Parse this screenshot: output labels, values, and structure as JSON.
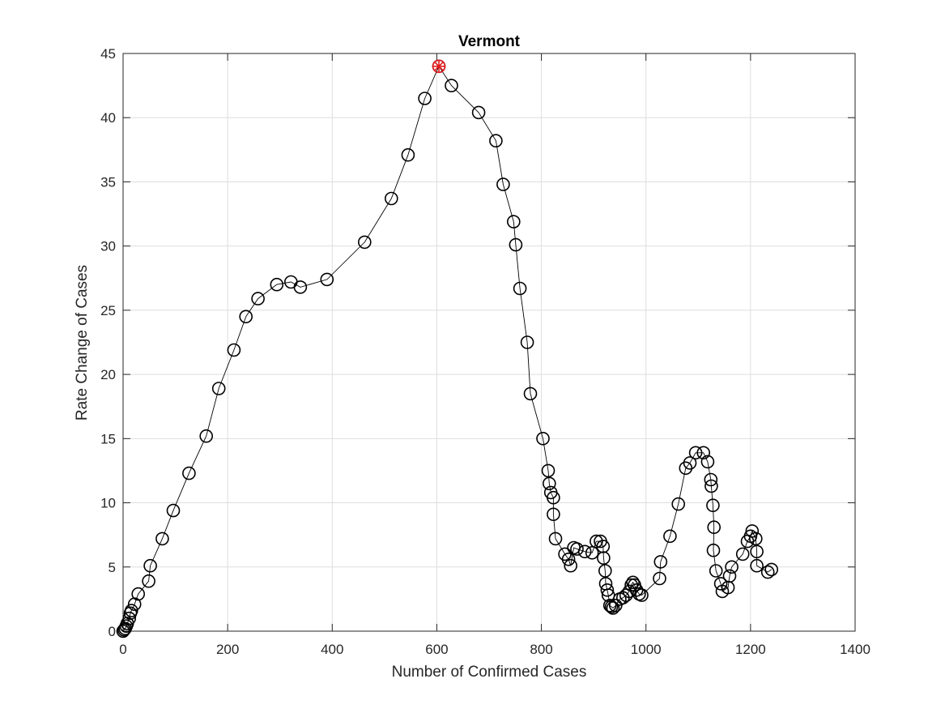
{
  "chart_data": {
    "type": "line",
    "title": "Vermont",
    "xlabel": "Number of Confirmed Cases",
    "ylabel": "Rate Change of Cases",
    "xlim": [
      0,
      1400
    ],
    "ylim": [
      0,
      45
    ],
    "xticks": [
      0,
      200,
      400,
      600,
      800,
      1000,
      1200,
      1400
    ],
    "yticks": [
      0,
      5,
      10,
      15,
      20,
      25,
      30,
      35,
      40,
      45
    ],
    "grid": true,
    "legend": "none",
    "colors": {
      "series": "#000000",
      "peak": "#e31a1c"
    },
    "series": [
      {
        "marker": "open-circle",
        "points": [
          [
            0,
            0
          ],
          [
            2,
            0.1
          ],
          [
            4,
            0.2
          ],
          [
            6,
            0.4
          ],
          [
            8,
            0.6
          ],
          [
            12,
            1.0
          ],
          [
            14,
            1.4
          ],
          [
            16,
            1.6
          ],
          [
            22,
            2.1
          ],
          [
            29,
            2.9
          ],
          [
            49,
            3.9
          ],
          [
            52,
            5.1
          ],
          [
            75,
            7.2
          ],
          [
            96,
            9.4
          ],
          [
            126,
            12.3
          ],
          [
            159,
            15.2
          ],
          [
            183,
            18.9
          ],
          [
            212,
            21.9
          ],
          [
            235,
            24.5
          ],
          [
            258,
            25.9
          ],
          [
            294,
            27.0
          ],
          [
            321,
            27.2
          ],
          [
            339,
            26.8
          ],
          [
            390,
            27.4
          ],
          [
            462,
            30.3
          ],
          [
            513,
            33.7
          ],
          [
            545,
            37.1
          ],
          [
            577,
            41.5
          ],
          [
            604,
            44.0
          ],
          [
            628,
            42.5
          ],
          [
            680,
            40.4
          ],
          [
            713,
            38.2
          ],
          [
            727,
            34.8
          ],
          [
            747,
            31.9
          ],
          [
            751,
            30.1
          ],
          [
            759,
            26.7
          ],
          [
            773,
            22.5
          ],
          [
            779,
            18.5
          ],
          [
            803,
            15.0
          ],
          [
            813,
            12.5
          ],
          [
            815,
            11.5
          ],
          [
            818,
            10.8
          ],
          [
            823,
            10.4
          ],
          [
            823,
            9.1
          ],
          [
            827,
            7.2
          ],
          [
            845,
            6.0
          ],
          [
            852,
            5.6
          ],
          [
            856,
            5.1
          ],
          [
            862,
            6.5
          ],
          [
            868,
            6.4
          ],
          [
            883,
            6.2
          ],
          [
            897,
            6.1
          ],
          [
            905,
            7.0
          ],
          [
            913,
            7.0
          ],
          [
            918,
            6.6
          ],
          [
            919,
            5.7
          ],
          [
            922,
            4.7
          ],
          [
            923,
            3.7
          ],
          [
            926,
            3.2
          ],
          [
            928,
            2.8
          ],
          [
            931,
            2.0
          ],
          [
            934,
            1.9
          ],
          [
            937,
            1.8
          ],
          [
            942,
            2.0
          ],
          [
            950,
            2.5
          ],
          [
            956,
            2.6
          ],
          [
            962,
            2.8
          ],
          [
            968,
            3.1
          ],
          [
            972,
            3.6
          ],
          [
            975,
            3.8
          ],
          [
            978,
            3.6
          ],
          [
            982,
            3.2
          ],
          [
            987,
            2.9
          ],
          [
            992,
            2.8
          ],
          [
            1026,
            4.1
          ],
          [
            1028,
            5.4
          ],
          [
            1046,
            7.4
          ],
          [
            1062,
            9.9
          ],
          [
            1076,
            12.7
          ],
          [
            1084,
            13.1
          ],
          [
            1095,
            13.9
          ],
          [
            1110,
            13.9
          ],
          [
            1118,
            13.2
          ],
          [
            1124,
            11.8
          ],
          [
            1125,
            11.3
          ],
          [
            1128,
            9.8
          ],
          [
            1130,
            8.1
          ],
          [
            1129,
            6.3
          ],
          [
            1134,
            4.7
          ],
          [
            1143,
            3.7
          ],
          [
            1146,
            3.1
          ],
          [
            1157,
            3.4
          ],
          [
            1160,
            4.3
          ],
          [
            1164,
            5.0
          ],
          [
            1185,
            6.0
          ],
          [
            1194,
            7.0
          ],
          [
            1200,
            7.4
          ],
          [
            1203,
            7.8
          ],
          [
            1210,
            7.2
          ],
          [
            1212,
            6.2
          ],
          [
            1212,
            5.1
          ],
          [
            1233,
            4.6
          ],
          [
            1240,
            4.8
          ]
        ]
      }
    ],
    "highlight": {
      "x": 604,
      "y": 44.0,
      "marker": "red-star-circle"
    }
  }
}
